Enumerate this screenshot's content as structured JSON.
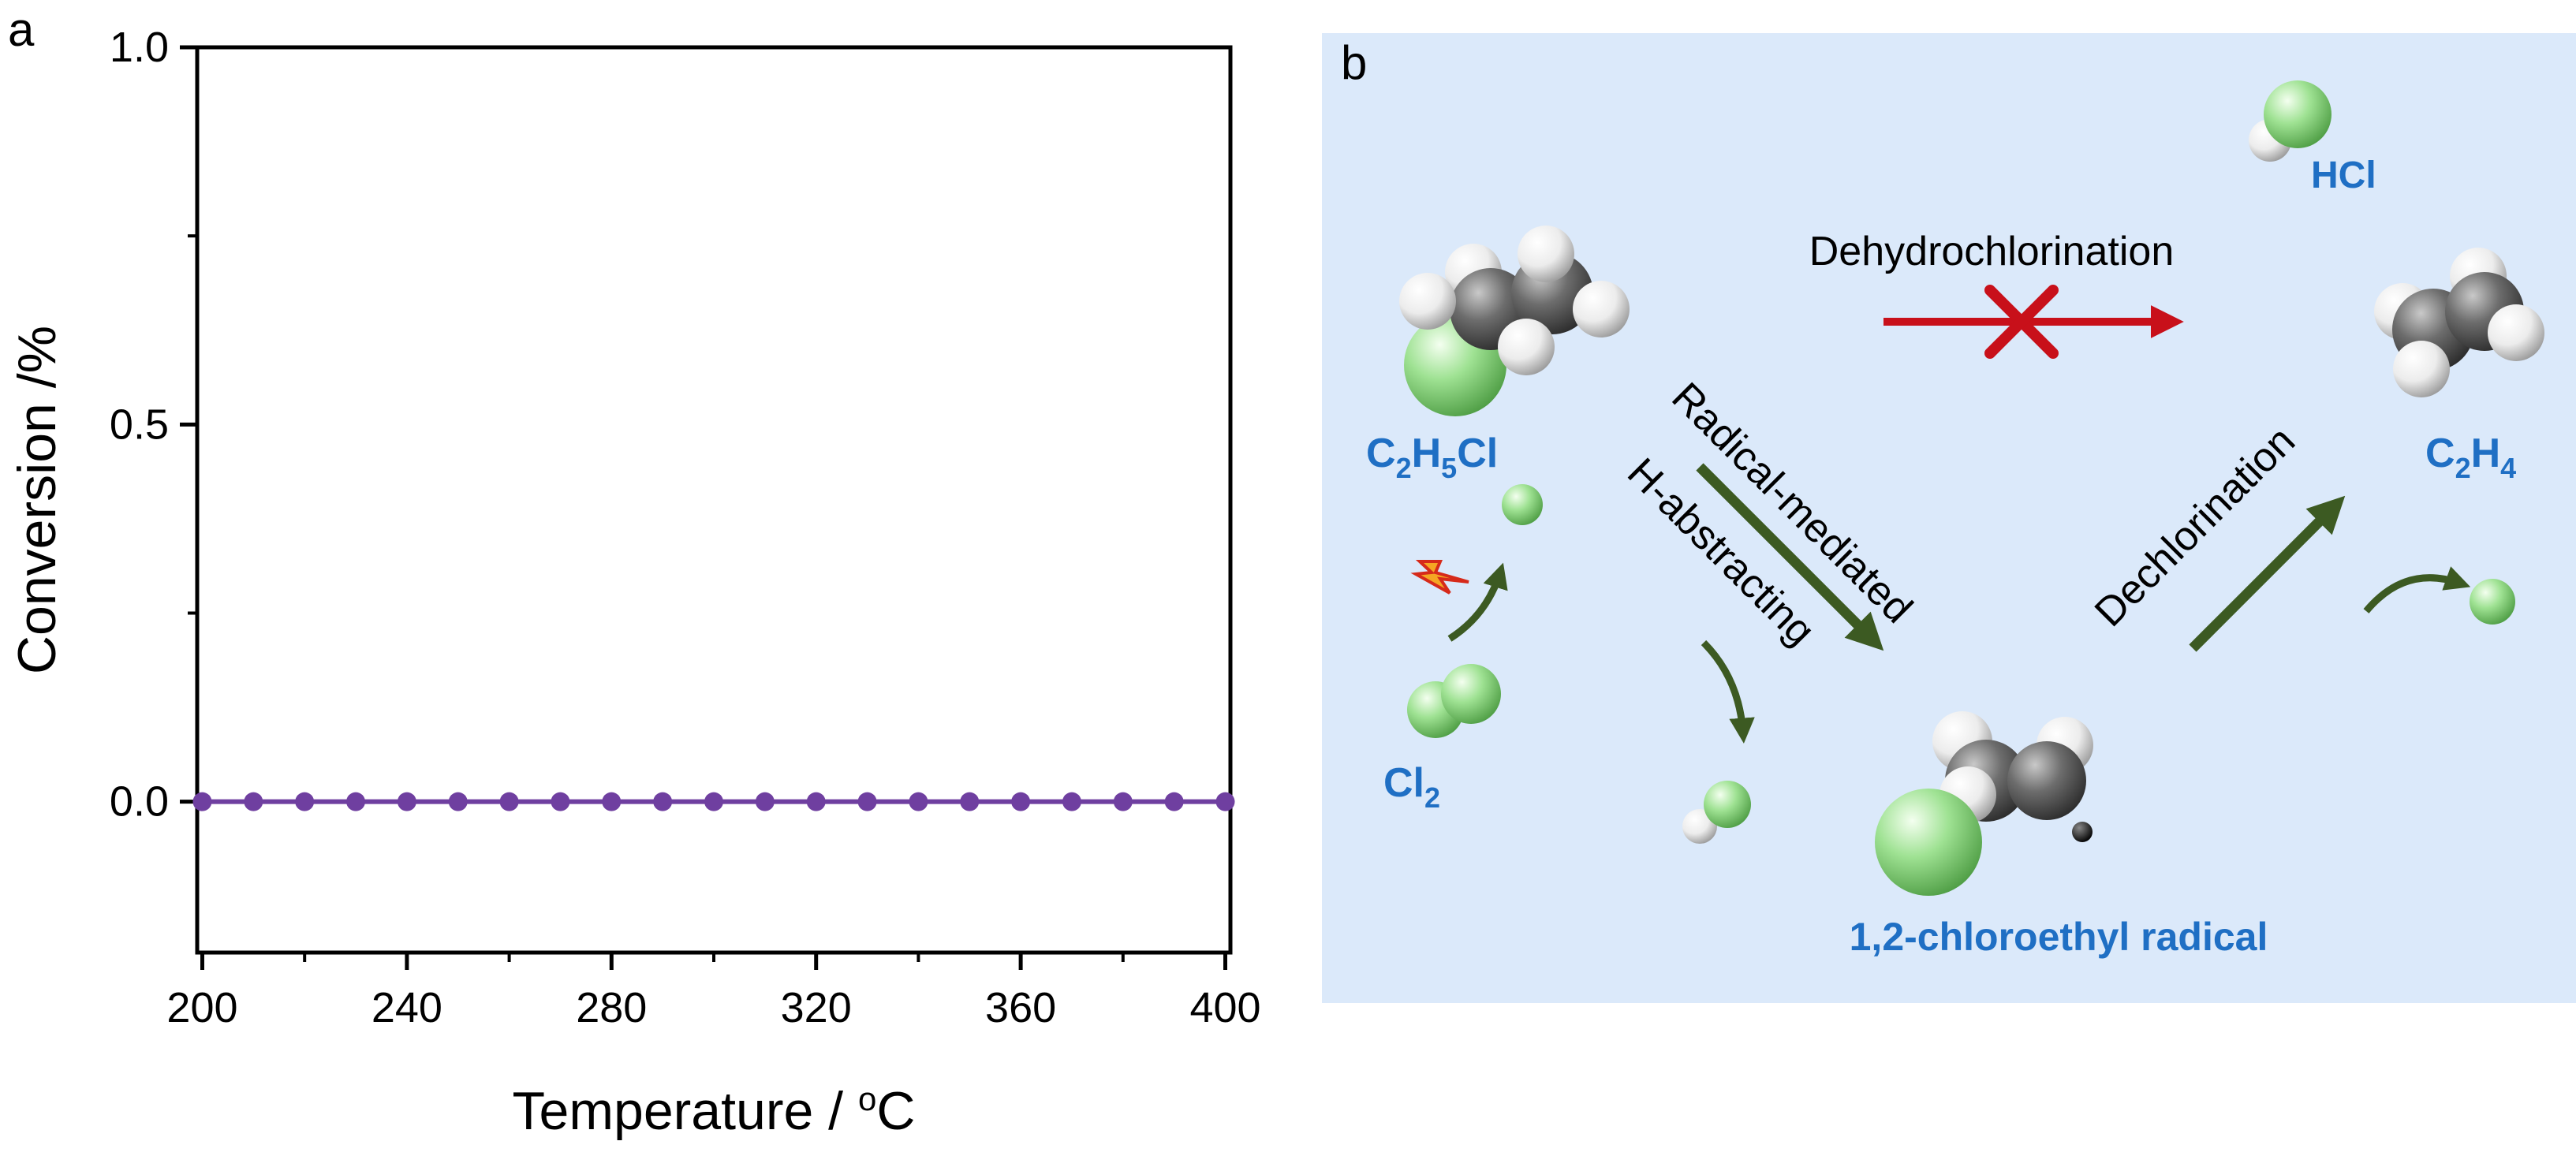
{
  "panel_a": {
    "label": "a"
  },
  "panel_b": {
    "label": "b",
    "background_color": "#dbe9fa",
    "species": {
      "c2h5cl": {
        "parts": [
          "C",
          "2",
          "H",
          "5",
          "Cl"
        ]
      },
      "cl2": {
        "parts": [
          "Cl",
          "2"
        ]
      },
      "c2h4": {
        "parts": [
          "C",
          "2",
          "H",
          "4"
        ]
      },
      "hcl": {
        "text": "HCl"
      },
      "radical": {
        "text": "1,2-chloroethyl radical"
      }
    },
    "pathways": {
      "dehydrochlorination": {
        "label": "Dehydrochlorination",
        "color": "#c8101a",
        "blocked": true
      },
      "radical_mediated": {
        "label": "Radical-mediated",
        "color": "#3c5a22"
      },
      "h_abstracting": {
        "label": "H-abstracting",
        "color": "#3c5a22"
      },
      "dechlorination": {
        "label": "Dechlorination",
        "color": "#3c5a22"
      }
    },
    "colors": {
      "label_blue": "#1f6fc4",
      "chlorine": "#9be08f",
      "carbon": "#666666",
      "hydrogen": "#f2f2f2"
    }
  },
  "chart_data": {
    "type": "line",
    "title": "",
    "xlabel": "Temperature / °C",
    "xlabel_parts": [
      "Temperature / ",
      "o",
      "C"
    ],
    "ylabel": "Conversion /%",
    "xlim": [
      199,
      401
    ],
    "ylim": [
      -0.2,
      1.0
    ],
    "xticks": [
      200,
      240,
      280,
      320,
      360,
      400
    ],
    "xtick_labels": [
      "200",
      "240",
      "280",
      "320",
      "360",
      "400"
    ],
    "yticks": [
      0.0,
      0.5,
      1.0
    ],
    "ytick_labels": [
      "0.0",
      "0.5",
      "1.0"
    ],
    "grid": false,
    "series": [
      {
        "name": "Conversion",
        "color": "#6f3fa0",
        "marker": "circle",
        "x": [
          200,
          210,
          220,
          230,
          240,
          250,
          260,
          270,
          280,
          290,
          300,
          310,
          320,
          330,
          340,
          350,
          360,
          370,
          380,
          390,
          400
        ],
        "y": [
          0,
          0,
          0,
          0,
          0,
          0,
          0,
          0,
          0,
          0,
          0,
          0,
          0,
          0,
          0,
          0,
          0,
          0,
          0,
          0,
          0
        ]
      }
    ]
  }
}
